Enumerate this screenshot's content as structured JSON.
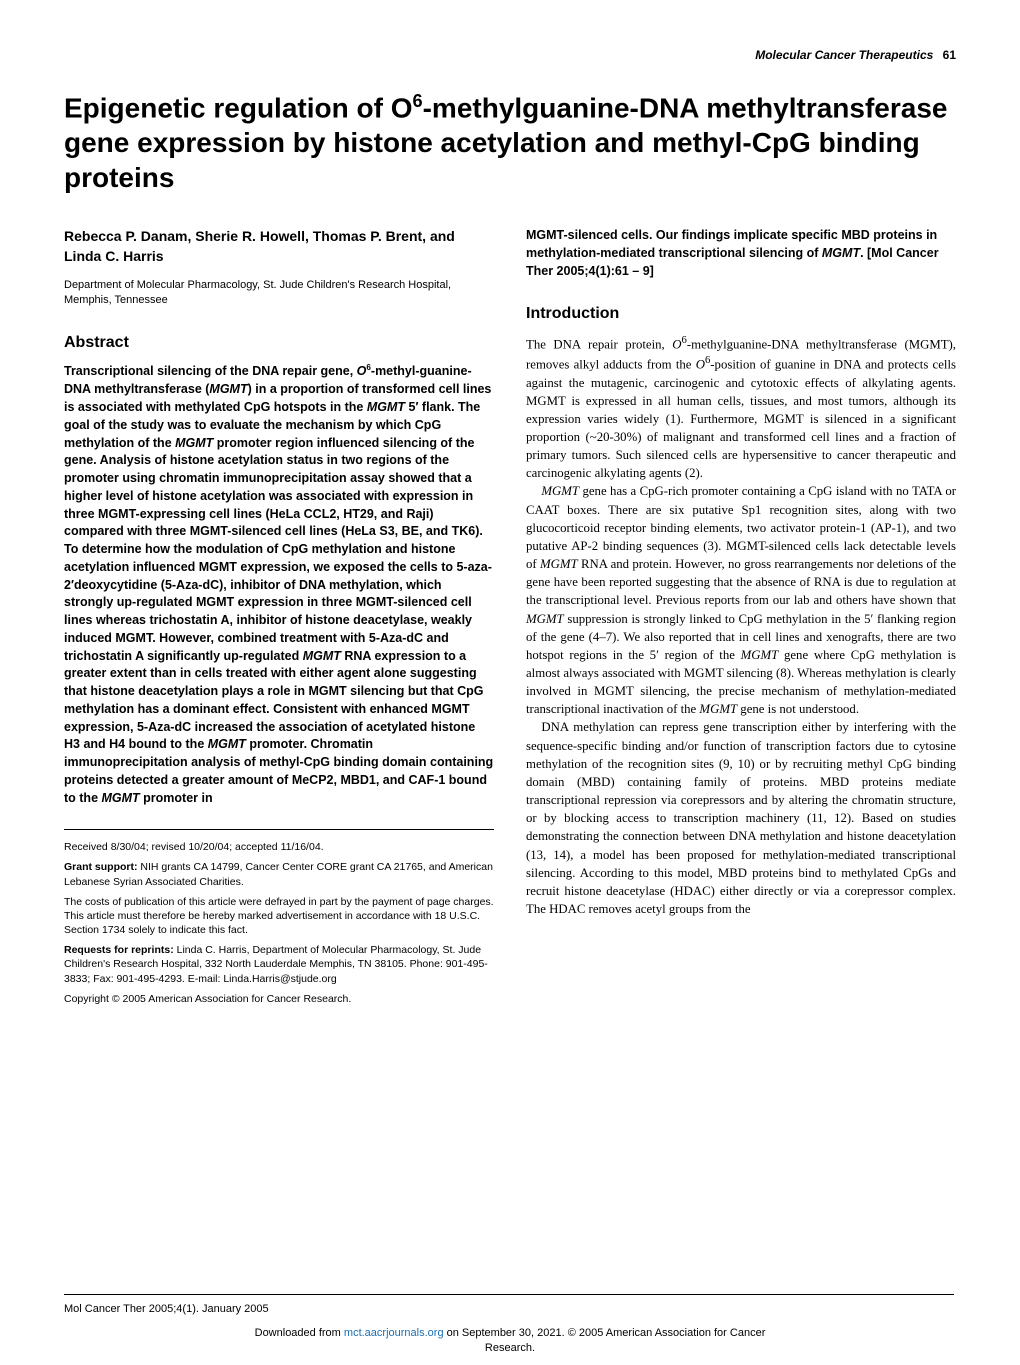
{
  "runningHead": {
    "journal": "Molecular Cancer Therapeutics",
    "pageNumber": "61"
  },
  "title_html": "Epigenetic regulation of <span class='ital'>O</span><span class='sup'>6</span>-methylguanine-DNA methyltransferase gene expression by histone acetylation and methyl-CpG binding proteins",
  "authors": "Rebecca P. Danam, Sherie R. Howell, Thomas P. Brent, and Linda C. Harris",
  "affiliation": "Department of Molecular Pharmacology, St. Jude Children's Research Hospital, Memphis, Tennessee",
  "abstractHead": "Abstract",
  "abstract_html": "Transcriptional silencing of the DNA repair gene, <span class='ital'>O</span><span class='sup'>6</span>-methyl-guanine-DNA methyltransferase (<span class='ital'>MGMT</span>) in a proportion of transformed cell lines is associated with methylated CpG hotspots in the <span class='ital'>MGMT</span> 5′ flank. The goal of the study was to evaluate the mechanism by which CpG methylation of the <span class='ital'>MGMT</span> promoter region influenced silencing of the gene. Analysis of histone acetylation status in two regions of the promoter using chromatin immunoprecipitation assay showed that a higher level of histone acetylation was associated with expression in three MGMT-expressing cell lines (HeLa CCL2, HT29, and Raji) compared with three MGMT-silenced cell lines (HeLa S3, BE, and TK6). To determine how the modulation of CpG methylation and histone acetylation influenced MGMT expression, we exposed the cells to 5-aza-2′deoxycytidine (5-Aza-dC), inhibitor of DNA methylation, which strongly up-regulated MGMT expression in three MGMT-silenced cell lines whereas trichostatin A, inhibitor of histone deacetylase, weakly induced MGMT. However, combined treatment with 5-Aza-dC and trichostatin A significantly up-regulated <span class='ital'>MGMT</span> RNA expression to a greater extent than in cells treated with either agent alone suggesting that histone deacetylation plays a role in MGMT silencing but that CpG methylation has a dominant effect. Consistent with enhanced MGMT expression, 5-Aza-dC increased the association of acetylated histone H3 and H4 bound to the <span class='ital'>MGMT</span> promoter. Chromatin immunoprecipitation analysis of methyl-CpG binding domain containing proteins detected a greater amount of MeCP2, MBD1, and CAF-1 bound to the <span class='ital'>MGMT</span> promoter in ",
  "abstractCont_html": "MGMT-silenced cells. Our findings implicate specific MBD proteins in methylation-mediated transcriptional silencing of <span class='ital'>MGMT</span>. [Mol Cancer Ther 2005;4(1):61 – 9]",
  "introHead": "Introduction",
  "intro_p1_html": "The DNA repair protein, <span class='ital'>O</span><sup>6</sup>-methylguanine-DNA methyltransferase (MGMT), removes alkyl adducts from the <span class='ital'>O</span><sup>6</sup>-position of guanine in DNA and protects cells against the mutagenic, carcinogenic and cytotoxic effects of alkylating agents. MGMT is expressed in all human cells, tissues, and most tumors, although its expression varies widely (1). Furthermore, MGMT is silenced in a significant proportion (~20-30%) of malignant and transformed cell lines and a fraction of primary tumors. Such silenced cells are hypersensitive to cancer therapeutic and carcinogenic alkylating agents (2).",
  "intro_p2_html": "<span class='ital'>MGMT</span> gene has a CpG-rich promoter containing a CpG island with no TATA or CAAT boxes. There are six putative Sp1 recognition sites, along with two glucocorticoid receptor binding elements, two activator protein-1 (AP-1), and two putative AP-2 binding sequences (3). MGMT-silenced cells lack detectable levels of <span class='ital'>MGMT</span> RNA and protein. However, no gross rearrangements nor deletions of the gene have been reported suggesting that the absence of RNA is due to regulation at the transcriptional level. Previous reports from our lab and others have shown that <span class='ital'>MGMT</span> suppression is strongly linked to CpG methylation in the 5′ flanking region of the gene (4–7). We also reported that in cell lines and xenografts, there are two hotspot regions in the 5′ region of the <span class='ital'>MGMT</span> gene where CpG methylation is almost always associated with MGMT silencing (8). Whereas methylation is clearly involved in MGMT silencing, the precise mechanism of methylation-mediated transcriptional inactivation of the <span class='ital'>MGMT</span> gene is not understood.",
  "intro_p3_html": "DNA methylation can repress gene transcription either by interfering with the sequence-specific binding and/or function of transcription factors due to cytosine methylation of the recognition sites (9, 10) or by recruiting methyl CpG binding domain (MBD) containing family of proteins. MBD proteins mediate transcriptional repression via corepressors and by altering the chromatin structure, or by blocking access to transcription machinery (11, 12). Based on studies demonstrating the connection between DNA methylation and histone deacetylation (13, 14), a model has been proposed for methylation-mediated transcriptional silencing. According to this model, MBD proteins bind to methylated CpGs and recruit histone deacetylase (HDAC) either directly or via a corepressor complex. The HDAC removes acetyl groups from the",
  "footnotes": {
    "received": "Received 8/30/04; revised 10/20/04; accepted 11/16/04.",
    "grantLabel": "Grant support:",
    "grant": " NIH grants CA 14799, Cancer Center CORE grant CA 21765, and American Lebanese Syrian Associated Charities.",
    "costs": "The costs of publication of this article were defrayed in part by the payment of page charges. This article must therefore be hereby marked advertisement in accordance with 18 U.S.C. Section 1734 solely to indicate this fact.",
    "reprintsLabel": "Requests for reprints:",
    "reprints": " Linda C. Harris, Department of Molecular Pharmacology, St. Jude Children's Research Hospital, 332 North Lauderdale Memphis, TN 38105. Phone: 901-495-3833; Fax: 901-495-4293. E-mail: Linda.Harris@stjude.org",
    "copyright": "Copyright © 2005 American Association for Cancer Research."
  },
  "footer": "Mol Cancer Ther 2005;4(1). January 2005",
  "download": {
    "prefix": "Downloaded from ",
    "link": "mct.aacrjournals.org",
    "suffix": " on September 30, 2021. © 2005 American Association for Cancer",
    "line2": "Research."
  }
}
